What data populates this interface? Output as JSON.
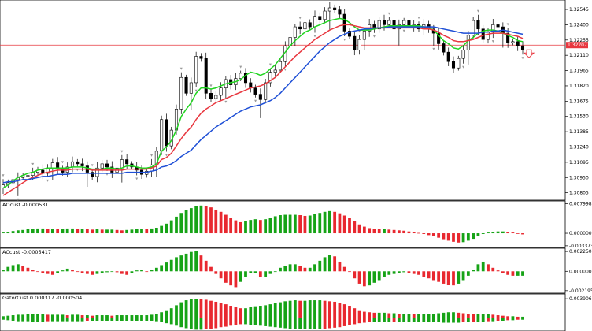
{
  "chart_data": [
    {
      "type": "candlestick",
      "pane": "main",
      "price_labels": [
        "1.32545",
        "1.32400",
        "1.32255",
        "1.32110",
        "1.31965",
        "1.31820",
        "1.31675",
        "1.31530",
        "1.31385",
        "1.31240",
        "1.31095",
        "1.30950",
        "1.30805"
      ],
      "price_values": [
        1.32545,
        1.324,
        1.32255,
        1.3211,
        1.31965,
        1.3182,
        1.31675,
        1.3153,
        1.31385,
        1.3124,
        1.31095,
        1.3095,
        1.30805
      ],
      "ylim": [
        1.3075,
        1.3262
      ],
      "bid_line": {
        "value": 1.32207,
        "label": "1.32207",
        "color": "#e8373f"
      },
      "close_path": [
        1.3088,
        1.309,
        1.3093,
        1.3095,
        1.3097,
        1.3097,
        1.31,
        1.3102,
        1.3099,
        1.3104,
        1.3109,
        1.3103,
        1.31,
        1.3105,
        1.311,
        1.3108,
        1.3106,
        1.31,
        1.3096,
        1.3104,
        1.3108,
        1.3105,
        1.31,
        1.3104,
        1.3112,
        1.3108,
        1.3105,
        1.3102,
        1.3098,
        1.3101,
        1.3107,
        1.312,
        1.315,
        1.3125,
        1.314,
        1.316,
        1.319,
        1.3175,
        1.3185,
        1.321,
        1.3208,
        1.3175,
        1.317,
        1.3173,
        1.318,
        1.3188,
        1.3183,
        1.3189,
        1.3194,
        1.3185,
        1.318,
        1.3174,
        1.3169,
        1.3185,
        1.3195,
        1.3197,
        1.3205,
        1.322,
        1.3228,
        1.3238,
        1.3236,
        1.3242,
        1.3238,
        1.3248,
        1.3245,
        1.3253,
        1.3256,
        1.3254,
        1.325,
        1.3234,
        1.3229,
        1.3216,
        1.3226,
        1.3234,
        1.324,
        1.3236,
        1.3244,
        1.324,
        1.3244,
        1.3236,
        1.324,
        1.3244,
        1.3238,
        1.324,
        1.3236,
        1.324,
        1.3236,
        1.3232,
        1.3222,
        1.3214,
        1.3205,
        1.3199,
        1.3208,
        1.3216,
        1.323,
        1.3244,
        1.3236,
        1.3226,
        1.3233,
        1.324,
        1.3238,
        1.3232,
        1.3223,
        1.3224,
        1.322,
        1.3216
      ],
      "series": [
        {
          "name": "",
          "color": "#1fd41f",
          "values": [
            1.3085,
            1.3088,
            1.3092,
            1.3095,
            1.3097,
            1.3099,
            1.31,
            1.3102,
            1.3103,
            1.3104,
            1.3104,
            1.3104,
            1.3104,
            1.3104,
            1.3105,
            1.3105,
            1.3105,
            1.3104,
            1.3103,
            1.3103,
            1.3103,
            1.3104,
            1.3104,
            1.3103,
            1.3104,
            1.3106,
            1.3106,
            1.3105,
            1.3104,
            1.3104,
            1.3105,
            1.3108,
            1.312,
            1.3124,
            1.313,
            1.314,
            1.3153,
            1.316,
            1.3166,
            1.3175,
            1.318,
            1.318,
            1.3179,
            1.318,
            1.3182,
            1.3184,
            1.3185,
            1.3186,
            1.3188,
            1.3192,
            1.3195,
            1.3194,
            1.3192,
            1.3194,
            1.3198,
            1.3202,
            1.3208,
            1.3214,
            1.322,
            1.3225,
            1.3229,
            1.3233,
            1.3235,
            1.3238,
            1.324,
            1.3242,
            1.3244,
            1.3245,
            1.3246,
            1.3245,
            1.3242,
            1.3238,
            1.3235,
            1.3235,
            1.3235,
            1.3236,
            1.3237,
            1.3238,
            1.3239,
            1.3239,
            1.3239,
            1.3239,
            1.3239,
            1.3239,
            1.3239,
            1.3238,
            1.3237,
            1.3235,
            1.323,
            1.3225,
            1.3222,
            1.3218,
            1.3217,
            1.322,
            1.3225,
            1.3228,
            1.3232,
            1.3234,
            1.3235,
            1.3235,
            1.3234,
            1.3232,
            1.323,
            1.3228,
            1.3225,
            1.3224
          ]
        },
        {
          "name": "",
          "color": "#e8373f",
          "values": [
            1.3078,
            1.3081,
            1.3084,
            1.3087,
            1.309,
            1.3093,
            1.3095,
            1.3097,
            1.3099,
            1.31,
            1.3101,
            1.3102,
            1.3102,
            1.3102,
            1.3103,
            1.3103,
            1.3103,
            1.3103,
            1.3102,
            1.3102,
            1.3102,
            1.3102,
            1.3102,
            1.3102,
            1.3102,
            1.3103,
            1.3103,
            1.3103,
            1.3103,
            1.3103,
            1.3104,
            1.3106,
            1.3112,
            1.3114,
            1.3118,
            1.3125,
            1.3132,
            1.3138,
            1.3143,
            1.315,
            1.3156,
            1.316,
            1.3163,
            1.3166,
            1.3168,
            1.317,
            1.3172,
            1.3174,
            1.3176,
            1.3178,
            1.318,
            1.3181,
            1.3182,
            1.3184,
            1.3187,
            1.319,
            1.3195,
            1.32,
            1.3205,
            1.321,
            1.3214,
            1.3218,
            1.3222,
            1.3226,
            1.3229,
            1.3232,
            1.3235,
            1.3237,
            1.3239,
            1.324,
            1.324,
            1.3239,
            1.3238,
            1.3237,
            1.3237,
            1.3237,
            1.3237,
            1.3237,
            1.3237,
            1.3237,
            1.3237,
            1.3237,
            1.3237,
            1.3237,
            1.3237,
            1.3236,
            1.3236,
            1.3235,
            1.3233,
            1.323,
            1.3228,
            1.3225,
            1.3224,
            1.3224,
            1.3225,
            1.3226,
            1.3228,
            1.323,
            1.3231,
            1.3232,
            1.3232,
            1.3232,
            1.3231,
            1.323,
            1.3229,
            1.3227
          ]
        },
        {
          "name": "",
          "color": "#1e4fd6",
          "values": [
            1.309,
            1.3091,
            1.3091,
            1.3092,
            1.3093,
            1.3093,
            1.3094,
            1.3095,
            1.3096,
            1.3096,
            1.3097,
            1.3098,
            1.3098,
            1.3098,
            1.3099,
            1.3099,
            1.3099,
            1.3099,
            1.3099,
            1.3099,
            1.3099,
            1.3099,
            1.3099,
            1.3099,
            1.3099,
            1.31,
            1.31,
            1.31,
            1.31,
            1.31,
            1.3101,
            1.3102,
            1.3105,
            1.3106,
            1.3108,
            1.3111,
            1.3115,
            1.3118,
            1.3121,
            1.3126,
            1.3131,
            1.3135,
            1.3139,
            1.3143,
            1.3146,
            1.3149,
            1.3152,
            1.3155,
            1.3158,
            1.316,
            1.3162,
            1.3163,
            1.3164,
            1.3166,
            1.3168,
            1.3171,
            1.3175,
            1.318,
            1.3185,
            1.319,
            1.3195,
            1.32,
            1.3205,
            1.321,
            1.3215,
            1.3219,
            1.3223,
            1.3226,
            1.3229,
            1.3231,
            1.3233,
            1.3234,
            1.3235,
            1.3236,
            1.3236,
            1.3237,
            1.3237,
            1.3237,
            1.3238,
            1.3238,
            1.3238,
            1.3238,
            1.3238,
            1.3238,
            1.3238,
            1.3238,
            1.3238,
            1.3238,
            1.3237,
            1.3236,
            1.3235,
            1.3234,
            1.3233,
            1.3232,
            1.3232,
            1.3232,
            1.3232,
            1.3233,
            1.3233,
            1.3234,
            1.3234,
            1.3235,
            1.3234,
            1.3233,
            1.3232,
            1.3231
          ]
        }
      ]
    },
    {
      "type": "bar",
      "pane": "indicator",
      "title": "AOcust -0.000531",
      "axis_labels": [
        "0.007998",
        "0.000000",
        "-0.003373"
      ],
      "axis_values": [
        0.007998,
        0.0,
        -0.003373
      ],
      "ylim": [
        -0.0034,
        0.0081
      ],
      "colors": {
        "up": "#16a316",
        "down": "#e8282f"
      },
      "values": [
        0.0002,
        0.0004,
        0.0006,
        0.0008,
        0.0009,
        0.0011,
        0.0012,
        0.0013,
        0.0013,
        0.0012,
        0.0012,
        0.0011,
        0.0012,
        0.0013,
        0.0013,
        0.0012,
        0.0012,
        0.0011,
        0.001,
        0.0011,
        0.001,
        0.001,
        0.001,
        0.0009,
        0.0008,
        0.0009,
        0.001,
        0.0011,
        0.0012,
        0.0011,
        0.0013,
        0.0015,
        0.002,
        0.0026,
        0.0035,
        0.0045,
        0.0055,
        0.0062,
        0.0068,
        0.0074,
        0.0075,
        0.0074,
        0.007,
        0.0064,
        0.0058,
        0.005,
        0.0042,
        0.0035,
        0.003,
        0.0033,
        0.0036,
        0.0038,
        0.0036,
        0.0038,
        0.0042,
        0.0046,
        0.0049,
        0.005,
        0.005,
        0.005,
        0.0049,
        0.0047,
        0.0048,
        0.0052,
        0.0055,
        0.0058,
        0.006,
        0.0058,
        0.0054,
        0.0048,
        0.0042,
        0.0032,
        0.0024,
        0.0018,
        0.0014,
        0.0012,
        0.0011,
        0.0011,
        0.001,
        0.0009,
        0.0008,
        0.0007,
        0.0005,
        0.0003,
        0.0001,
        -0.0002,
        -0.0005,
        -0.0008,
        -0.0012,
        -0.0016,
        -0.002,
        -0.0023,
        -0.0025,
        -0.0024,
        -0.002,
        -0.0015,
        -0.0008,
        -0.0002,
        0.0002,
        0.0004,
        0.0005,
        0.0005,
        0.0004,
        0.0002,
        -0.0001,
        -0.0003
      ]
    },
    {
      "type": "bar",
      "pane": "indicator",
      "title": "ACcust -0.0005417",
      "axis_labels": [
        "0.0022509",
        "0.0000000",
        "-0.0021956"
      ],
      "axis_values": [
        0.0022509,
        0.0,
        -0.0021956
      ],
      "ylim": [
        -0.0023,
        0.00235
      ],
      "colors": {
        "up": "#16a316",
        "down": "#e8282f"
      },
      "values": [
        0.0002,
        0.0005,
        0.0007,
        0.0008,
        0.0006,
        0.0004,
        0.0002,
        0.0,
        -0.0002,
        -0.0003,
        -0.0004,
        -0.0002,
        0.0001,
        0.0003,
        0.0002,
        0.0,
        -0.0002,
        -0.0003,
        -0.0004,
        -0.0003,
        -0.0002,
        -0.0001,
        0.0,
        -0.0001,
        -0.0003,
        -0.0004,
        -0.0002,
        0.0001,
        0.0002,
        0.0,
        0.0002,
        0.0004,
        0.0007,
        0.001,
        0.0013,
        0.0016,
        0.0018,
        0.002,
        0.0022,
        0.0023,
        0.0018,
        0.0012,
        0.0005,
        -0.0003,
        -0.0008,
        -0.0013,
        -0.0016,
        -0.0018,
        -0.0012,
        -0.0006,
        -0.0002,
        -0.0002,
        -0.0006,
        -0.0006,
        -0.0003,
        0.0,
        0.0004,
        0.0006,
        0.0008,
        0.0008,
        0.0006,
        0.0004,
        0.0004,
        0.0008,
        0.0012,
        0.0016,
        0.0019,
        0.0017,
        0.0011,
        0.0005,
        0.0,
        -0.0008,
        -0.0014,
        -0.0017,
        -0.0016,
        -0.0013,
        -0.001,
        -0.0006,
        -0.0004,
        -0.0003,
        -0.0002,
        -0.0001,
        -0.0002,
        -0.0003,
        -0.0004,
        -0.0006,
        -0.0008,
        -0.001,
        -0.0012,
        -0.0014,
        -0.0015,
        -0.0016,
        -0.0014,
        -0.001,
        -0.0005,
        0.0002,
        0.0008,
        0.0011,
        0.0008,
        0.0004,
        0.0001,
        -0.0002,
        -0.0004,
        -0.0005,
        -0.0005,
        -0.0005
      ]
    },
    {
      "type": "histogram",
      "pane": "indicator",
      "title": "GatorCust 0.000317 -0.000504",
      "axis_labels": [
        "0.003906"
      ],
      "axis_values": [
        0.003906
      ],
      "ylim": [
        -0.0024,
        0.0044
      ],
      "colors": {
        "up": "#16a316",
        "down": "#e8282f"
      },
      "upper": [
        0.0004,
        0.0005,
        0.0006,
        0.0007,
        0.0007,
        0.0008,
        0.0008,
        0.0008,
        0.0008,
        0.0007,
        0.0007,
        0.0007,
        0.0007,
        0.0006,
        0.0007,
        0.0007,
        0.0006,
        0.0006,
        0.0005,
        0.0006,
        0.0006,
        0.0006,
        0.0005,
        0.0006,
        0.0006,
        0.0006,
        0.0006,
        0.0006,
        0.0006,
        0.0006,
        0.0007,
        0.0008,
        0.0012,
        0.0016,
        0.002,
        0.0026,
        0.0032,
        0.0036,
        0.0039,
        0.0039,
        0.0038,
        0.0037,
        0.0035,
        0.0033,
        0.003,
        0.0028,
        0.0025,
        0.0022,
        0.002,
        0.002,
        0.0022,
        0.0024,
        0.0025,
        0.0026,
        0.0028,
        0.003,
        0.0032,
        0.0034,
        0.0035,
        0.0036,
        0.0035,
        0.0035,
        0.0036,
        0.0036,
        0.0036,
        0.0035,
        0.0034,
        0.0033,
        0.0031,
        0.0028,
        0.0025,
        0.002,
        0.0016,
        0.0013,
        0.0012,
        0.0011,
        0.0011,
        0.0011,
        0.001,
        0.001,
        0.0009,
        0.0009,
        0.0009,
        0.0008,
        0.0008,
        0.0008,
        0.0008,
        0.0009,
        0.001,
        0.0011,
        0.0012,
        0.0012,
        0.0011,
        0.001,
        0.0009,
        0.0008,
        0.0008,
        0.0008,
        0.0008,
        0.0007,
        0.0006,
        0.0005,
        0.0004,
        0.0004,
        0.0003,
        0.0003
      ],
      "lower": [
        0.0003,
        0.0004,
        0.0005,
        0.0006,
        0.0006,
        0.0006,
        0.0007,
        0.0007,
        0.0007,
        0.0006,
        0.0006,
        0.0006,
        0.0006,
        0.0006,
        0.0006,
        0.0006,
        0.0006,
        0.0005,
        0.0005,
        0.0005,
        0.0005,
        0.0005,
        0.0005,
        0.0005,
        0.0005,
        0.0005,
        0.0005,
        0.0005,
        0.0005,
        0.0005,
        0.0005,
        0.0006,
        0.0008,
        0.001,
        0.0012,
        0.0015,
        0.0018,
        0.002,
        0.0022,
        0.0023,
        0.0023,
        0.0022,
        0.0021,
        0.002,
        0.0018,
        0.0017,
        0.0015,
        0.0013,
        0.0012,
        0.0012,
        0.0013,
        0.0014,
        0.0015,
        0.0016,
        0.0017,
        0.0018,
        0.0019,
        0.002,
        0.0021,
        0.0022,
        0.0022,
        0.0022,
        0.0022,
        0.0022,
        0.0022,
        0.0021,
        0.002,
        0.0019,
        0.0018,
        0.0016,
        0.0014,
        0.0012,
        0.001,
        0.0009,
        0.0008,
        0.0008,
        0.0008,
        0.0008,
        0.0008,
        0.0007,
        0.0007,
        0.0007,
        0.0007,
        0.0007,
        0.0007,
        0.0007,
        0.0007,
        0.0008,
        0.0008,
        0.0009,
        0.0009,
        0.0009,
        0.0009,
        0.0008,
        0.0008,
        0.0007,
        0.0007,
        0.0007,
        0.0006,
        0.0006,
        0.0005,
        0.0005,
        0.0004,
        0.0004,
        0.0003,
        0.0003
      ]
    }
  ]
}
